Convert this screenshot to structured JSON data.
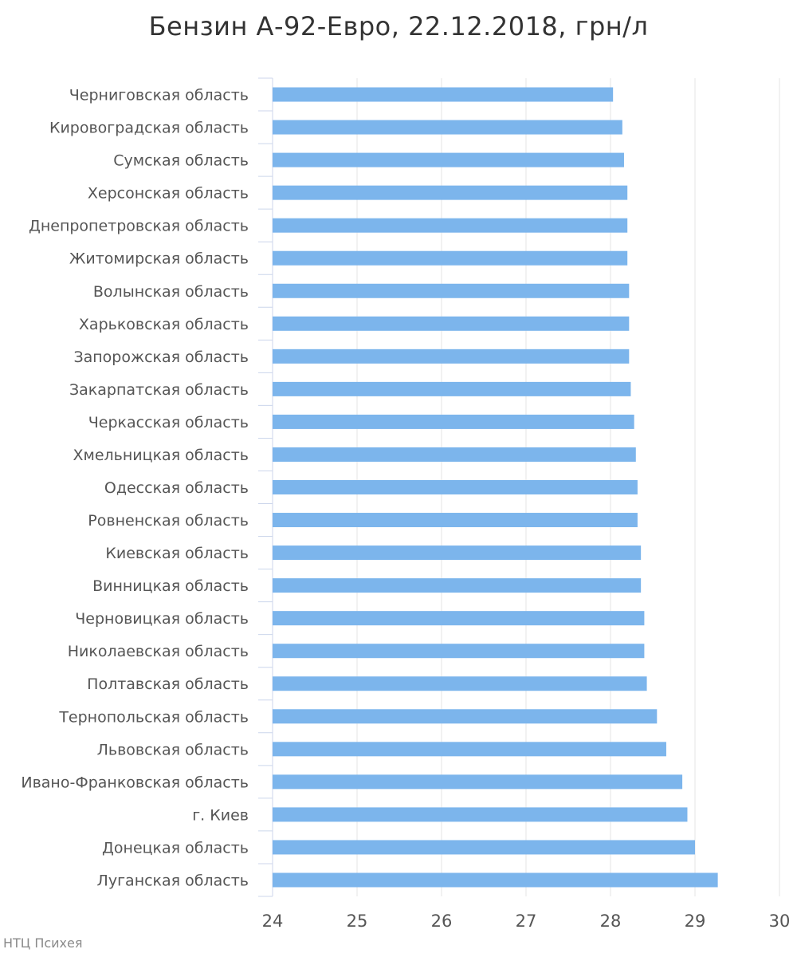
{
  "chart_data": {
    "type": "bar",
    "orientation": "horizontal",
    "title": "Бензин А-92-Евро, 22.12.2018, грн/л",
    "categories": [
      "Черниговская область",
      "Кировоградская область",
      "Сумская область",
      "Херсонская область",
      "Днепропетровская область",
      "Житомирская область",
      "Волынская область",
      "Харьковская область",
      "Запорожская область",
      "Закарпатская область",
      "Черкасская область",
      "Хмельницкая область",
      "Одесская область",
      "Ровненская область",
      "Киевская область",
      "Винницкая область",
      "Черновицкая область",
      "Николаевская область",
      "Полтавская область",
      "Тернопольская область",
      "Львовская область",
      "Ивано-Франковская область",
      "г. Киев",
      "Донецкая область",
      "Луганская область"
    ],
    "values": [
      28.03,
      28.14,
      28.16,
      28.2,
      28.2,
      28.2,
      28.22,
      28.22,
      28.22,
      28.24,
      28.28,
      28.3,
      28.32,
      28.32,
      28.36,
      28.36,
      28.4,
      28.4,
      28.43,
      28.55,
      28.66,
      28.85,
      28.91,
      29.0,
      29.27
    ],
    "xlim": [
      24,
      30
    ],
    "xticks": [
      24,
      25,
      26,
      27,
      28,
      29,
      30
    ],
    "grid": true,
    "bar_color": "#7cb5ec"
  },
  "footer": {
    "credit": "НТЦ Психея"
  }
}
